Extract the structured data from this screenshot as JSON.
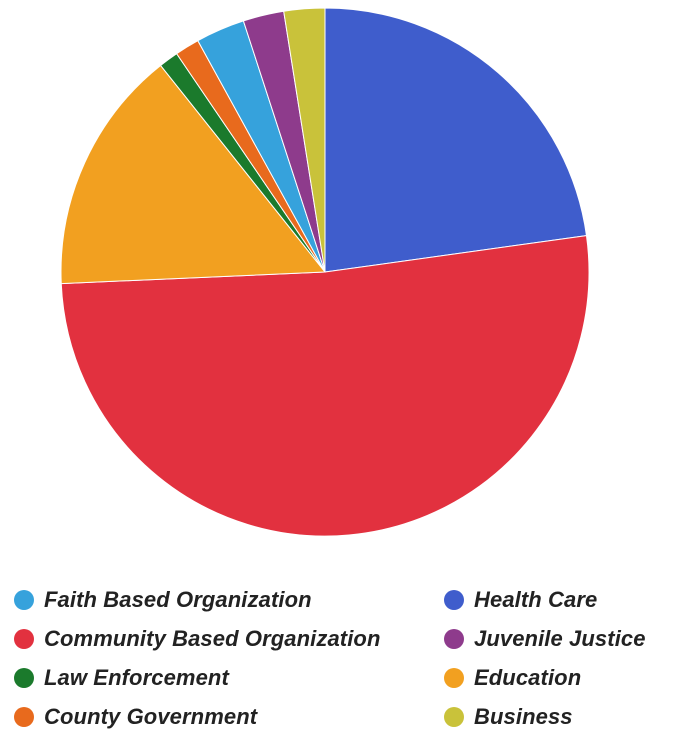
{
  "chart_data": {
    "type": "pie",
    "title": "",
    "start_angle_deg": 0,
    "direction": "clockwise",
    "slices": [
      {
        "label": "Health Care",
        "value": 22.8,
        "color": "#3f5dcc"
      },
      {
        "label": "Community Based Organization",
        "value": 51.5,
        "color": "#e2313f"
      },
      {
        "label": "Education",
        "value": 15.0,
        "color": "#f2a020"
      },
      {
        "label": "Law Enforcement",
        "value": 1.2,
        "color": "#1b7a2c"
      },
      {
        "label": "County Government",
        "value": 1.5,
        "color": "#e86a1d"
      },
      {
        "label": "Faith Based Organization",
        "value": 3.0,
        "color": "#36a2dc"
      },
      {
        "label": "Juvenile Justice",
        "value": 2.5,
        "color": "#8e3b8c"
      },
      {
        "label": "Business",
        "value": 2.5,
        "color": "#c9c23a"
      }
    ],
    "legend": {
      "placement": "bottom",
      "items": [
        {
          "label": "Faith Based Organization",
          "color": "#36a2dc"
        },
        {
          "label": "Health Care",
          "color": "#3f5dcc"
        },
        {
          "label": "Community Based Organization",
          "color": "#e2313f"
        },
        {
          "label": "Juvenile Justice",
          "color": "#8e3b8c"
        },
        {
          "label": "Law Enforcement",
          "color": "#1b7a2c"
        },
        {
          "label": "Education",
          "color": "#f2a020"
        },
        {
          "label": "County Government",
          "color": "#e86a1d"
        },
        {
          "label": "Business",
          "color": "#c9c23a"
        }
      ]
    }
  }
}
